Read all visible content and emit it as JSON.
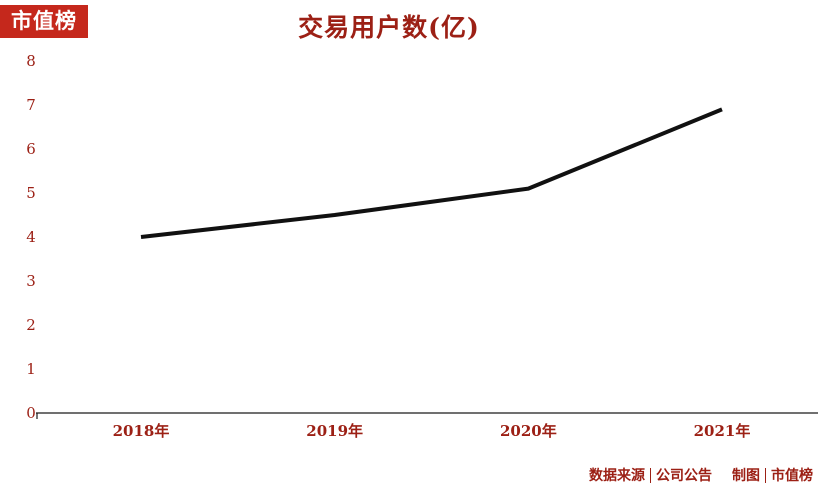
{
  "badge": {
    "label": "市值榜"
  },
  "chart_data": {
    "type": "line",
    "title": "交易用户数(亿)",
    "categories": [
      "2018年",
      "2019年",
      "2020年",
      "2021年"
    ],
    "values": [
      4.0,
      4.5,
      5.1,
      6.9
    ],
    "ylim": [
      0,
      8
    ],
    "yticks": [
      0,
      1,
      2,
      3,
      4,
      5,
      6,
      7,
      8
    ],
    "grid": false,
    "legend": "none",
    "line_color": "#111111",
    "label_color": "#9c2015",
    "axis_color": "#1a1a1a"
  },
  "footer": {
    "source_label": "数据来源",
    "source_value": "公司公告",
    "credit_label": "制图",
    "credit_value": "市值榜"
  },
  "colors": {
    "accent": "#9c2015",
    "badge_bg": "#c5281c",
    "background": "#ffffff"
  }
}
